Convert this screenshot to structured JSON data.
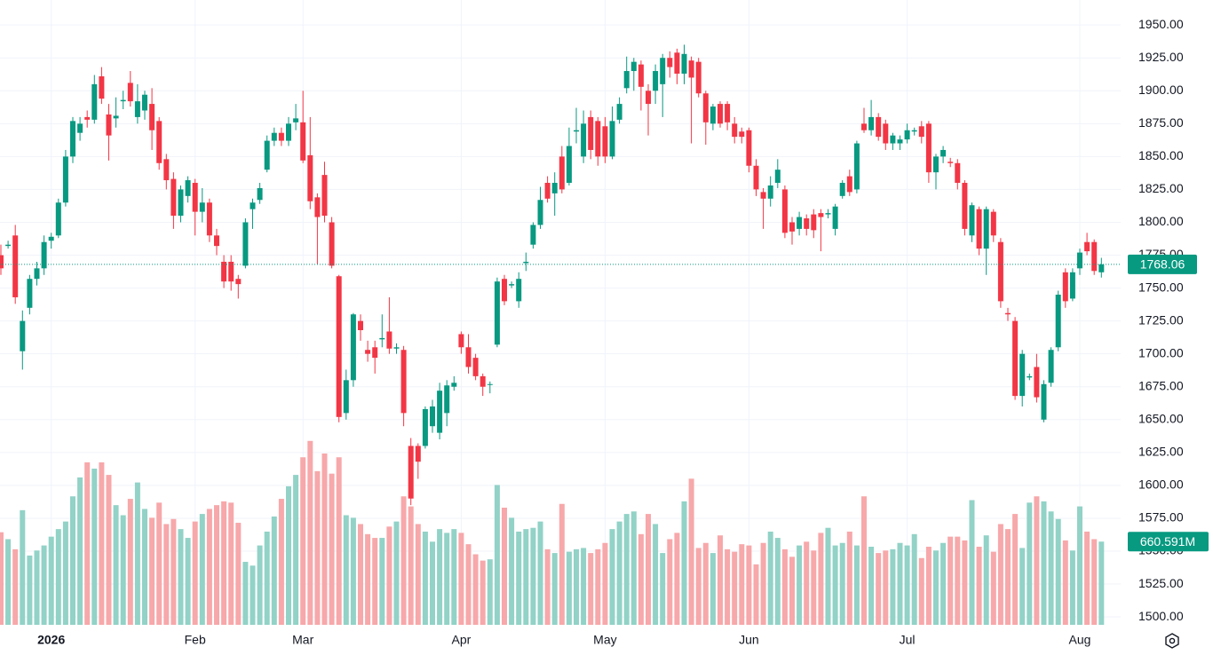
{
  "chart_data": {
    "type": "candlestick",
    "up_color": "#089981",
    "down_color": "#f23645",
    "volume_up_color": "#92d2c7",
    "volume_down_color": "#f7a8aa",
    "grid": true,
    "ylim": [
      1494,
      1969
    ],
    "yticks": [
      {
        "value": 1500,
        "label": "1500.00"
      },
      {
        "value": 1525,
        "label": "1525.00"
      },
      {
        "value": 1550,
        "label": "1550.00"
      },
      {
        "value": 1575,
        "label": "1575.00"
      },
      {
        "value": 1600,
        "label": "1600.00"
      },
      {
        "value": 1625,
        "label": "1625.00"
      },
      {
        "value": 1650,
        "label": "1650.00"
      },
      {
        "value": 1675,
        "label": "1675.00"
      },
      {
        "value": 1700,
        "label": "1700.00"
      },
      {
        "value": 1725,
        "label": "1725.00"
      },
      {
        "value": 1750,
        "label": "1750.00"
      },
      {
        "value": 1775,
        "label": "1775.00"
      },
      {
        "value": 1800,
        "label": "1800.00"
      },
      {
        "value": 1825,
        "label": "1825.00"
      },
      {
        "value": 1850,
        "label": "1850.00"
      },
      {
        "value": 1875,
        "label": "1875.00"
      },
      {
        "value": 1900,
        "label": "1900.00"
      },
      {
        "value": 1925,
        "label": "1925.00"
      },
      {
        "value": 1950,
        "label": "1950.00"
      }
    ],
    "volume_ylim": [
      0,
      4960
    ],
    "volume_last_label": "660.591M",
    "categories": [
      null,
      null,
      null,
      null,
      null,
      null,
      null,
      "2026",
      null,
      null,
      null,
      null,
      null,
      null,
      null,
      null,
      null,
      null,
      null,
      null,
      null,
      null,
      null,
      null,
      null,
      null,
      null,
      "Feb",
      null,
      null,
      null,
      null,
      null,
      null,
      null,
      null,
      null,
      null,
      null,
      null,
      null,
      null,
      "Mar",
      null,
      null,
      null,
      null,
      null,
      null,
      null,
      null,
      null,
      null,
      null,
      null,
      null,
      null,
      null,
      null,
      null,
      null,
      null,
      null,
      null,
      "Apr",
      null,
      null,
      null,
      null,
      null,
      null,
      null,
      null,
      null,
      null,
      null,
      null,
      null,
      null,
      null,
      null,
      null,
      null,
      null,
      "May",
      null,
      null,
      null,
      null,
      null,
      null,
      null,
      null,
      null,
      null,
      null,
      null,
      null,
      null,
      null,
      null,
      null,
      null,
      null,
      "Jun",
      null,
      null,
      null,
      null,
      null,
      null,
      null,
      null,
      null,
      null,
      null,
      null,
      null,
      null,
      null,
      null,
      null,
      null,
      null,
      null,
      null,
      "Jul",
      null,
      null,
      null,
      null,
      null,
      null,
      null,
      null,
      null,
      null,
      null,
      null,
      null,
      null,
      null,
      null,
      null,
      null,
      null,
      null,
      null,
      null,
      null,
      "Aug",
      null,
      null,
      null
    ],
    "ohlc": [
      [
        1775,
        1783,
        1760,
        1765
      ],
      [
        1782,
        1786,
        1780,
        1783
      ],
      [
        1790,
        1798,
        1738,
        1743
      ],
      [
        1702,
        1733,
        1688,
        1725
      ],
      [
        1735,
        1760,
        1730,
        1757
      ],
      [
        1757,
        1770,
        1752,
        1765
      ],
      [
        1765,
        1790,
        1760,
        1785
      ],
      [
        1786,
        1792,
        1780,
        1789
      ],
      [
        1790,
        1818,
        1788,
        1815
      ],
      [
        1815,
        1855,
        1812,
        1850
      ],
      [
        1850,
        1880,
        1845,
        1877
      ],
      [
        1868,
        1880,
        1862,
        1875
      ],
      [
        1880,
        1885,
        1872,
        1878
      ],
      [
        1878,
        1912,
        1875,
        1905
      ],
      [
        1911,
        1918,
        1890,
        1894
      ],
      [
        1882,
        1890,
        1847,
        1866
      ],
      [
        1879,
        1895,
        1872,
        1881
      ],
      [
        1892,
        1900,
        1886,
        1893
      ],
      [
        1906,
        1915,
        1888,
        1892
      ],
      [
        1880,
        1905,
        1875,
        1892
      ],
      [
        1885,
        1900,
        1878,
        1897
      ],
      [
        1890,
        1902,
        1855,
        1870
      ],
      [
        1877,
        1880,
        1840,
        1845
      ],
      [
        1848,
        1852,
        1825,
        1832
      ],
      [
        1833,
        1838,
        1795,
        1805
      ],
      [
        1805,
        1828,
        1800,
        1825
      ],
      [
        1820,
        1835,
        1815,
        1832
      ],
      [
        1830,
        1833,
        1790,
        1808
      ],
      [
        1808,
        1826,
        1800,
        1815
      ],
      [
        1815,
        1818,
        1785,
        1790
      ],
      [
        1790,
        1795,
        1775,
        1782
      ],
      [
        1770,
        1775,
        1750,
        1755
      ],
      [
        1770,
        1775,
        1748,
        1755
      ],
      [
        1757,
        1760,
        1742,
        1753
      ],
      [
        1767,
        1803,
        1765,
        1800
      ],
      [
        1810,
        1818,
        1795,
        1815
      ],
      [
        1817,
        1830,
        1814,
        1826
      ],
      [
        1840,
        1866,
        1838,
        1862
      ],
      [
        1862,
        1872,
        1858,
        1868
      ],
      [
        1868,
        1872,
        1858,
        1862
      ],
      [
        1862,
        1880,
        1858,
        1875
      ],
      [
        1876,
        1890,
        1870,
        1879
      ],
      [
        1876,
        1900,
        1845,
        1847
      ],
      [
        1851,
        1880,
        1810,
        1816
      ],
      [
        1819,
        1822,
        1768,
        1804
      ],
      [
        1836,
        1846,
        1800,
        1805
      ],
      [
        1800,
        1804,
        1765,
        1767
      ],
      [
        1759,
        1760,
        1648,
        1652
      ],
      [
        1655,
        1688,
        1650,
        1680
      ],
      [
        1680,
        1731,
        1675,
        1730
      ],
      [
        1725,
        1730,
        1710,
        1718
      ],
      [
        1703,
        1710,
        1694,
        1700
      ],
      [
        1705,
        1710,
        1685,
        1697
      ],
      [
        1711,
        1730,
        1705,
        1712
      ],
      [
        1717,
        1743,
        1700,
        1704
      ],
      [
        1704,
        1708,
        1700,
        1705
      ],
      [
        1703,
        1706,
        1645,
        1655
      ],
      [
        1630,
        1636,
        1585,
        1590
      ],
      [
        1630,
        1632,
        1605,
        1618
      ],
      [
        1630,
        1660,
        1628,
        1658
      ],
      [
        1645,
        1665,
        1640,
        1660
      ],
      [
        1640,
        1678,
        1635,
        1672
      ],
      [
        1655,
        1680,
        1645,
        1676
      ],
      [
        1675,
        1683,
        1672,
        1678
      ],
      [
        1715,
        1717,
        1700,
        1705
      ],
      [
        1705,
        1715,
        1685,
        1690
      ],
      [
        1697,
        1700,
        1680,
        1683
      ],
      [
        1683,
        1685,
        1668,
        1675
      ],
      [
        1677,
        1679,
        1670,
        1677
      ],
      [
        1707,
        1758,
        1705,
        1755
      ],
      [
        1757,
        1760,
        1737,
        1740
      ],
      [
        1752,
        1755,
        1750,
        1753
      ],
      [
        1740,
        1762,
        1735,
        1757
      ],
      [
        1769,
        1777,
        1763,
        1770
      ],
      [
        1783,
        1800,
        1780,
        1798
      ],
      [
        1798,
        1827,
        1795,
        1817
      ],
      [
        1830,
        1835,
        1815,
        1818
      ],
      [
        1822,
        1838,
        1805,
        1830
      ],
      [
        1850,
        1858,
        1822,
        1825
      ],
      [
        1830,
        1872,
        1828,
        1858
      ],
      [
        1869,
        1887,
        1860,
        1870
      ],
      [
        1850,
        1885,
        1845,
        1875
      ],
      [
        1880,
        1885,
        1848,
        1855
      ],
      [
        1877,
        1880,
        1843,
        1850
      ],
      [
        1873,
        1880,
        1845,
        1850
      ],
      [
        1850,
        1888,
        1848,
        1877
      ],
      [
        1878,
        1895,
        1875,
        1890
      ],
      [
        1902,
        1926,
        1898,
        1915
      ],
      [
        1915,
        1925,
        1900,
        1922
      ],
      [
        1920,
        1923,
        1885,
        1903
      ],
      [
        1900,
        1905,
        1866,
        1890
      ],
      [
        1900,
        1920,
        1890,
        1915
      ],
      [
        1905,
        1928,
        1880,
        1925
      ],
      [
        1925,
        1930,
        1910,
        1918
      ],
      [
        1929,
        1932,
        1905,
        1913
      ],
      [
        1913,
        1935,
        1905,
        1928
      ],
      [
        1923,
        1926,
        1860,
        1910
      ],
      [
        1922,
        1925,
        1895,
        1898
      ],
      [
        1898,
        1900,
        1859,
        1876
      ],
      [
        1875,
        1890,
        1870,
        1888
      ],
      [
        1890,
        1892,
        1872,
        1875
      ],
      [
        1890,
        1892,
        1870,
        1876
      ],
      [
        1875,
        1880,
        1860,
        1865
      ],
      [
        1869,
        1872,
        1860,
        1865
      ],
      [
        1870,
        1872,
        1838,
        1843
      ],
      [
        1843,
        1848,
        1820,
        1825
      ],
      [
        1823,
        1826,
        1795,
        1818
      ],
      [
        1818,
        1835,
        1812,
        1828
      ],
      [
        1830,
        1848,
        1826,
        1840
      ],
      [
        1825,
        1828,
        1788,
        1792
      ],
      [
        1800,
        1804,
        1783,
        1793
      ],
      [
        1795,
        1808,
        1790,
        1804
      ],
      [
        1803,
        1806,
        1790,
        1795
      ],
      [
        1806,
        1810,
        1788,
        1794
      ],
      [
        1807,
        1810,
        1778,
        1804
      ],
      [
        1806,
        1810,
        1803,
        1807
      ],
      [
        1795,
        1814,
        1790,
        1812
      ],
      [
        1820,
        1832,
        1818,
        1830
      ],
      [
        1835,
        1840,
        1820,
        1823
      ],
      [
        1825,
        1862,
        1822,
        1860
      ],
      [
        1875,
        1887,
        1868,
        1870
      ],
      [
        1870,
        1893,
        1866,
        1880
      ],
      [
        1880,
        1883,
        1862,
        1865
      ],
      [
        1875,
        1878,
        1855,
        1860
      ],
      [
        1860,
        1868,
        1855,
        1866
      ],
      [
        1860,
        1866,
        1855,
        1863
      ],
      [
        1863,
        1875,
        1860,
        1870
      ],
      [
        1869,
        1872,
        1866,
        1870
      ],
      [
        1873,
        1877,
        1860,
        1865
      ],
      [
        1875,
        1877,
        1830,
        1838
      ],
      [
        1838,
        1852,
        1825,
        1850
      ],
      [
        1850,
        1858,
        1845,
        1855
      ],
      [
        1846,
        1849,
        1842,
        1845
      ],
      [
        1845,
        1848,
        1825,
        1830
      ],
      [
        1830,
        1832,
        1790,
        1795
      ],
      [
        1790,
        1815,
        1785,
        1813
      ],
      [
        1810,
        1812,
        1775,
        1780
      ],
      [
        1780,
        1812,
        1760,
        1810
      ],
      [
        1808,
        1810,
        1785,
        1790
      ],
      [
        1785,
        1788,
        1735,
        1740
      ],
      [
        1731,
        1735,
        1725,
        1730
      ],
      [
        1725,
        1728,
        1665,
        1668
      ],
      [
        1668,
        1703,
        1660,
        1700
      ],
      [
        1682,
        1685,
        1680,
        1683
      ],
      [
        1690,
        1700,
        1663,
        1667
      ],
      [
        1650,
        1680,
        1648,
        1677
      ],
      [
        1678,
        1705,
        1675,
        1703
      ],
      [
        1705,
        1748,
        1702,
        1745
      ],
      [
        1762,
        1765,
        1735,
        1740
      ],
      [
        1742,
        1765,
        1740,
        1762
      ],
      [
        1765,
        1780,
        1760,
        1777
      ],
      [
        1785,
        1792,
        1775,
        1778
      ],
      [
        1785,
        1787,
        1760,
        1763
      ],
      [
        1762,
        1773,
        1758,
        1768.06
      ]
    ],
    "volumes": [
      735,
      680,
      600,
      910,
      550,
      590,
      630,
      700,
      760,
      820,
      1020,
      1170,
      1290,
      1240,
      1290,
      1190,
      950,
      870,
      1000,
      1130,
      920,
      850,
      970,
      800,
      840,
      760,
      690,
      820,
      880,
      920,
      950,
      980,
      970,
      810,
      500,
      470,
      630,
      740,
      860,
      1000,
      1100,
      1190,
      1330,
      1460,
      1220,
      1360,
      1200,
      1330,
      870,
      850,
      800,
      720,
      690,
      690,
      780,
      820,
      1020,
      940,
      800,
      740,
      660,
      760,
      730,
      760,
      730,
      640,
      560,
      510,
      520,
      1110,
      930,
      850,
      740,
      760,
      770,
      820,
      600,
      570,
      960,
      580,
      600,
      610,
      570,
      600,
      650,
      760,
      820,
      880,
      900,
      720,
      880,
      800,
      570,
      680,
      730,
      980,
      1160,
      610,
      650,
      570,
      710,
      600,
      580,
      640,
      630,
      480,
      650,
      740,
      690,
      600,
      540,
      630,
      660,
      590,
      730,
      770,
      630,
      650,
      740,
      630,
      1020,
      620,
      570,
      590,
      600,
      650,
      630,
      720,
      530,
      620,
      590,
      650,
      700,
      700,
      670,
      990,
      620,
      710,
      580,
      800,
      760,
      880,
      610,
      970,
      1020,
      980,
      900,
      840,
      670,
      590,
      940,
      740,
      680,
      660.591
    ]
  }
}
